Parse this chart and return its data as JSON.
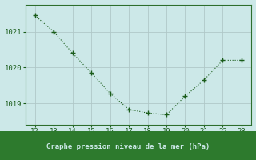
{
  "x": [
    12,
    13,
    14,
    15,
    16,
    17,
    18,
    19,
    20,
    21,
    22,
    23
  ],
  "y": [
    1021.45,
    1021.0,
    1020.4,
    1019.85,
    1019.28,
    1018.83,
    1018.73,
    1018.68,
    1019.2,
    1019.65,
    1020.2,
    1020.2
  ],
  "line_color": "#1a5c1a",
  "marker": "+",
  "marker_size": 4,
  "linewidth": 0.8,
  "background_color": "#cce8e8",
  "grid_color": "#b0c8c8",
  "xlabel": "Graphe pression niveau de la mer (hPa)",
  "xlabel_color": "#1a5c1a",
  "xlabel_fontsize": 6.5,
  "tick_color": "#1a5c1a",
  "tick_fontsize": 6.5,
  "ylim": [
    1018.4,
    1021.75
  ],
  "yticks": [
    1019,
    1020,
    1021
  ],
  "xticks": [
    12,
    13,
    14,
    15,
    16,
    17,
    18,
    19,
    20,
    21,
    22,
    23
  ],
  "spine_color": "#2d6e2d",
  "bottom_bar_color": "#2d7a2d",
  "bottom_bar_text_color": "#cce8e8",
  "xlim": [
    11.5,
    23.5
  ]
}
